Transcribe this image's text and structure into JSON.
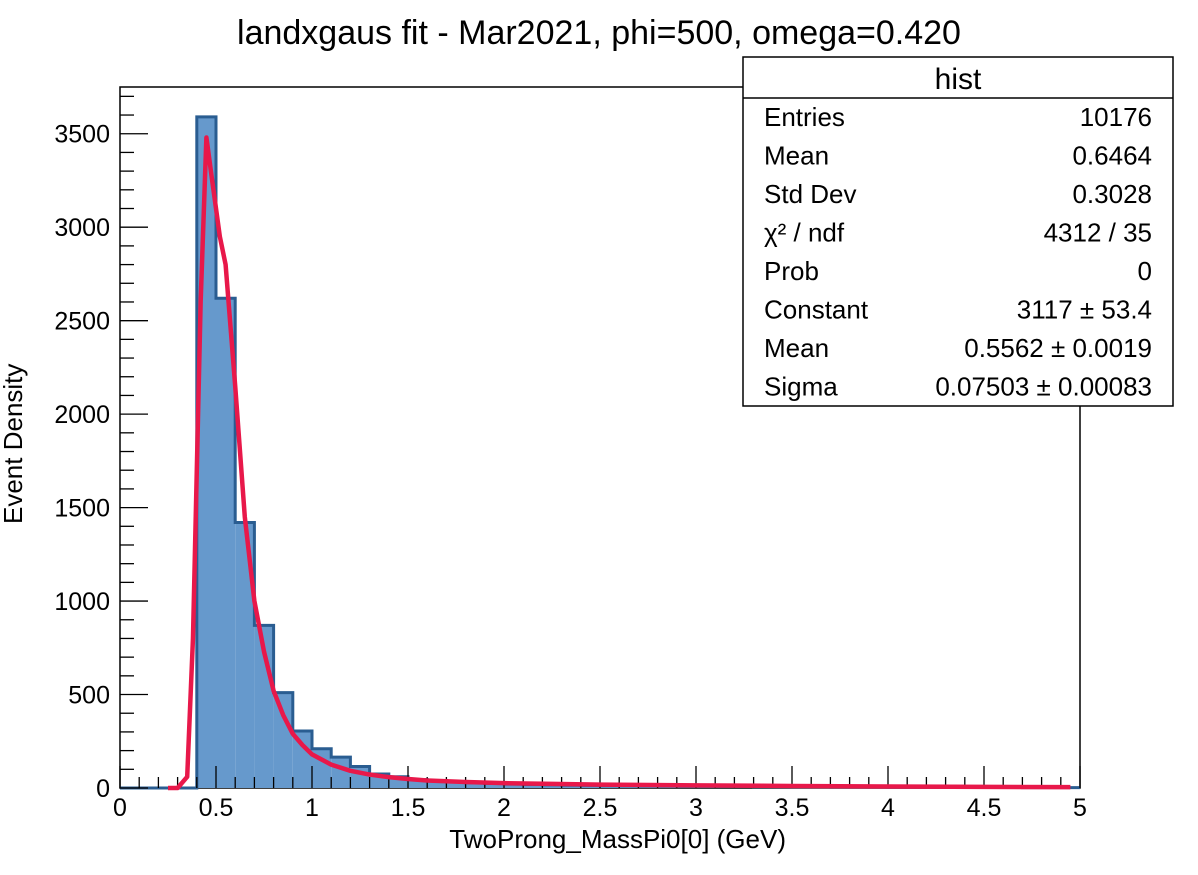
{
  "chart_data": {
    "type": "bar",
    "title": "landxgaus fit - Mar2021, phi=500, omega=0.420",
    "xlabel": "TwoProng_MassPi0[0] (GeV)",
    "ylabel": "Event Density",
    "xlim": [
      0,
      5
    ],
    "ylim": [
      0,
      3750
    ],
    "x_ticks": [
      "0",
      "0.5",
      "1",
      "1.5",
      "2",
      "2.5",
      "3",
      "3.5",
      "4",
      "4.5",
      "5"
    ],
    "y_ticks": [
      "0",
      "500",
      "1000",
      "1500",
      "2000",
      "2500",
      "3000",
      "3500"
    ],
    "bin_width": 0.1,
    "bin_edges_start": 0,
    "histogram": {
      "name": "hist",
      "color": "#6699cc",
      "edge_color": "#2a5d91",
      "values": [
        0,
        0,
        0,
        0,
        3590,
        2620,
        1420,
        870,
        510,
        305,
        210,
        165,
        115,
        75,
        60,
        45,
        40,
        32,
        28,
        24,
        21,
        19,
        17,
        15,
        14,
        13,
        12,
        11,
        10,
        9,
        9,
        8,
        8,
        7,
        7,
        6,
        6,
        5,
        5,
        5,
        4,
        4,
        4,
        3,
        3,
        3,
        3,
        2,
        2,
        2
      ]
    },
    "fit": {
      "name": "landxgaus",
      "color": "#e8184a",
      "x": [
        0.25,
        0.3,
        0.35,
        0.38,
        0.42,
        0.45,
        0.48,
        0.52,
        0.55,
        0.6,
        0.65,
        0.7,
        0.75,
        0.8,
        0.85,
        0.9,
        0.95,
        1.0,
        1.1,
        1.2,
        1.3,
        1.4,
        1.5,
        1.6,
        1.8,
        2.0,
        2.25,
        2.5,
        3.0,
        3.5,
        4.0,
        4.5,
        4.95
      ],
      "y": [
        0,
        0,
        60,
        800,
        2600,
        3480,
        3250,
        2950,
        2800,
        2150,
        1450,
        1000,
        730,
        520,
        390,
        290,
        230,
        180,
        125,
        92,
        72,
        58,
        48,
        40,
        32,
        26,
        22,
        18,
        14,
        11,
        8,
        6,
        5
      ]
    },
    "stats_box": {
      "title": "hist",
      "rows": [
        {
          "label": "Entries",
          "value": "10176"
        },
        {
          "label": "Mean",
          "value": "0.6464"
        },
        {
          "label": "Std Dev",
          "value": "0.3028"
        },
        {
          "label": "χ² / ndf",
          "value": "4312 / 35"
        },
        {
          "label": "Prob",
          "value": "0"
        },
        {
          "label": "Constant",
          "value": "3117 ± 53.4"
        },
        {
          "label": "Mean",
          "value": "0.5562 ± 0.0019"
        },
        {
          "label": "Sigma",
          "value": "0.07503 ± 0.00083"
        }
      ]
    }
  }
}
